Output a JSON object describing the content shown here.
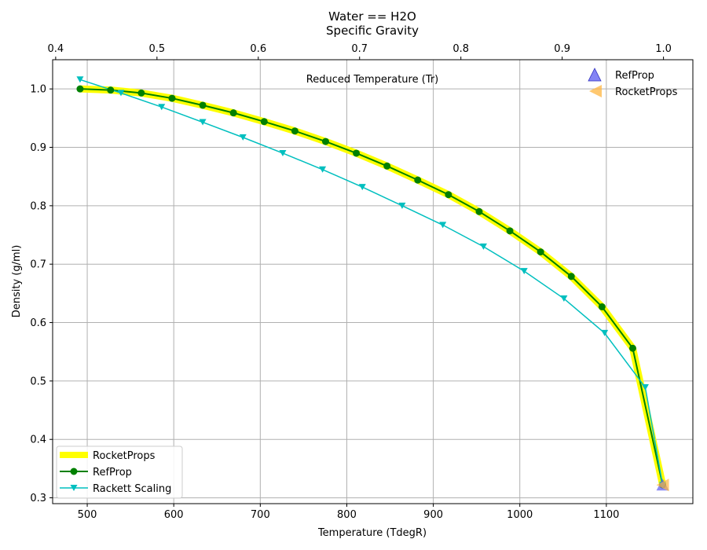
{
  "chart_data": {
    "type": "line",
    "title_line1": "Water == H2O",
    "title_line2": "Specific Gravity",
    "xlabel": "Temperature (TdegR)",
    "ylabel": "Density (g/ml)",
    "top_axis_label": "Reduced Temperature (Tr)",
    "xlim": [
      460,
      1200
    ],
    "ylim": [
      0.29,
      1.05
    ],
    "top_xlim": [
      0.397,
      1.029
    ],
    "x_ticks": [
      500,
      600,
      700,
      800,
      900,
      1000,
      1100
    ],
    "y_ticks": [
      0.3,
      0.4,
      0.5,
      0.6,
      0.7,
      0.8,
      0.9,
      1.0
    ],
    "top_ticks": [
      0.4,
      0.5,
      0.6,
      0.7,
      0.8,
      0.9,
      1.0
    ],
    "grid": true,
    "colors": {
      "rocketprops_line": "#ffff00",
      "refprop_line": "#008000",
      "rackett_line": "#00bfbf",
      "critical_refprop": "#5a5af0",
      "critical_rocketprops": "#ffb640"
    },
    "series": [
      {
        "name": "RocketProps",
        "x": [
          491.7,
          527,
          562.5,
          598,
          633.5,
          669,
          704.5,
          740,
          775.5,
          811,
          846.5,
          882,
          917.5,
          953,
          988.5,
          1024,
          1059.5,
          1095,
          1130.5,
          1165.1
        ],
        "y": [
          1.0,
          0.998,
          0.993,
          0.984,
          0.972,
          0.959,
          0.944,
          0.928,
          0.91,
          0.89,
          0.868,
          0.844,
          0.819,
          0.79,
          0.757,
          0.721,
          0.679,
          0.627,
          0.556,
          0.322
        ]
      },
      {
        "name": "RefProp",
        "x": [
          491.7,
          527,
          562.5,
          598,
          633.5,
          669,
          704.5,
          740,
          775.5,
          811,
          846.5,
          882,
          917.5,
          953,
          988.5,
          1024,
          1059.5,
          1095,
          1130.5,
          1165.1
        ],
        "y": [
          1.0,
          0.998,
          0.993,
          0.984,
          0.972,
          0.959,
          0.944,
          0.928,
          0.91,
          0.89,
          0.868,
          0.844,
          0.819,
          0.79,
          0.757,
          0.721,
          0.679,
          0.627,
          0.556,
          0.322
        ]
      },
      {
        "name": "Rackett Scaling",
        "x": [
          491.7,
          539,
          586,
          633.5,
          680,
          726,
          772,
          818,
          864,
          911,
          958,
          1005,
          1051,
          1098,
          1145,
          1165.1
        ],
        "y": [
          1.016,
          0.993,
          0.969,
          0.943,
          0.917,
          0.89,
          0.862,
          0.832,
          0.8,
          0.767,
          0.73,
          0.688,
          0.641,
          0.582,
          0.489,
          0.322
        ]
      }
    ],
    "critical_points": [
      {
        "name": "RefProp",
        "x": 1165.1,
        "y": 0.322,
        "marker": "triangle-up"
      },
      {
        "name": "RocketProps",
        "x": 1165.1,
        "y": 0.322,
        "marker": "triangle-left"
      }
    ],
    "legend_lower_left": [
      "RocketProps",
      "RefProp",
      "Rackett Scaling"
    ],
    "legend_upper_right": [
      "RefProp",
      "RocketProps"
    ]
  }
}
